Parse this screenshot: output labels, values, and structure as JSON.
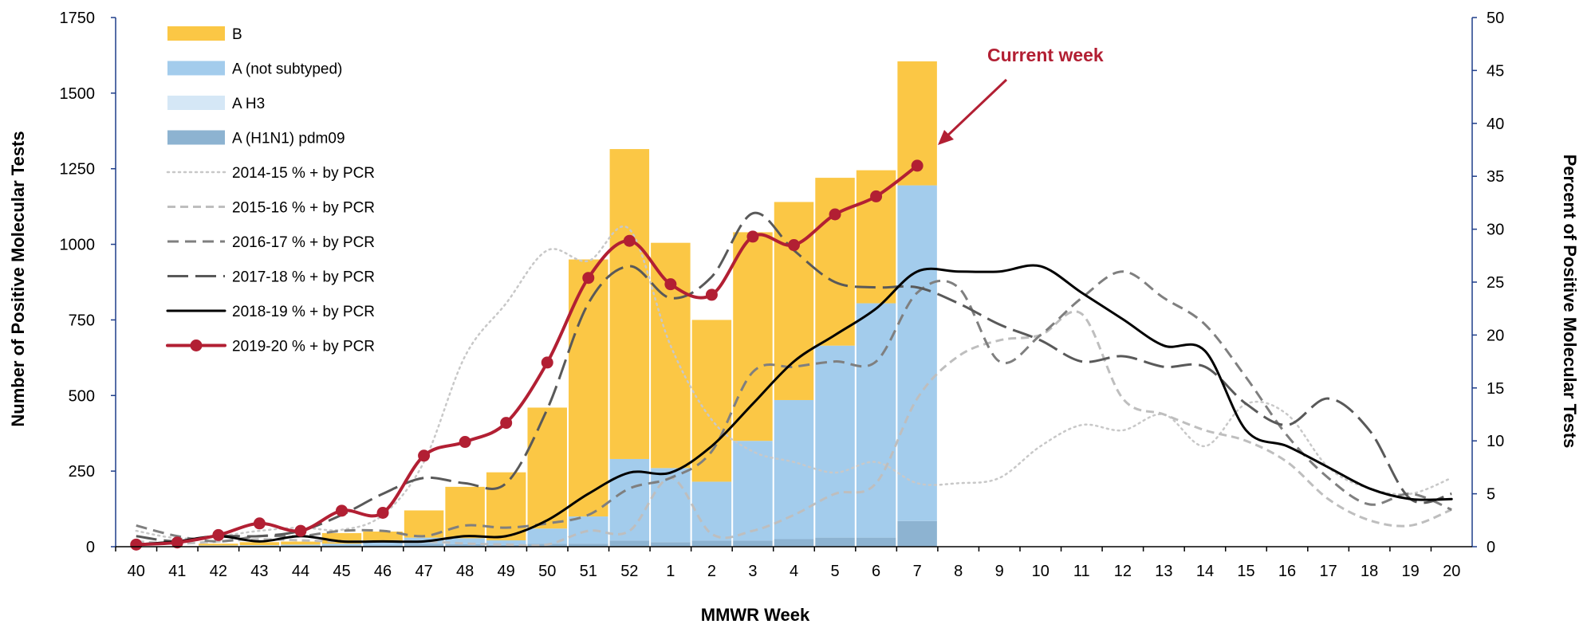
{
  "chart_data": {
    "type": "bar",
    "xlabel": "MMWR Week",
    "ylabel": "Number of Positive Molecular Tests",
    "y2label": "Percent of Positive Molecular Tests",
    "ylim": [
      0,
      1750
    ],
    "y2lim": [
      0,
      50
    ],
    "yticks": [
      0,
      250,
      500,
      750,
      1000,
      1250,
      1500,
      1750
    ],
    "y2ticks": [
      0,
      5,
      10,
      15,
      20,
      25,
      30,
      35,
      40,
      45,
      50
    ],
    "categories": [
      "40",
      "41",
      "42",
      "43",
      "44",
      "45",
      "46",
      "47",
      "48",
      "49",
      "50",
      "51",
      "52",
      "1",
      "2",
      "3",
      "4",
      "5",
      "6",
      "7",
      "8",
      "9",
      "10",
      "11",
      "12",
      "13",
      "14",
      "15",
      "16",
      "17",
      "18",
      "19",
      "20"
    ],
    "bar_series": [
      {
        "name": "A (H1N1) pdm09",
        "color": "#8db3d1",
        "values": [
          0,
          0,
          2,
          3,
          5,
          5,
          5,
          10,
          8,
          6,
          10,
          10,
          20,
          15,
          20,
          20,
          25,
          30,
          30,
          85
        ]
      },
      {
        "name": "A H3",
        "color": "#d5e7f6",
        "values": [
          0,
          0,
          0,
          0,
          0,
          0,
          0,
          0,
          0,
          0,
          0,
          0,
          0,
          0,
          0,
          0,
          0,
          0,
          0,
          0
        ]
      },
      {
        "name": "A (not subtyped)",
        "color": "#a3ccec",
        "values": [
          0,
          0,
          2,
          2,
          2,
          5,
          10,
          20,
          20,
          15,
          50,
          90,
          270,
          245,
          195,
          330,
          460,
          635,
          775,
          1110
        ]
      },
      {
        "name": "B",
        "color": "#fbc745",
        "values": [
          0,
          0,
          6,
          10,
          10,
          35,
          35,
          90,
          170,
          225,
          400,
          850,
          1025,
          745,
          535,
          690,
          655,
          555,
          440,
          410
        ]
      }
    ],
    "line_series": [
      {
        "name": "2014-15 % + by PCR",
        "style": "dotted",
        "color": "#c8c8c8",
        "values": [
          1.5,
          0.8,
          1.0,
          1.5,
          1.8,
          1.6,
          3.0,
          8.0,
          18.0,
          23.0,
          28.0,
          27.0,
          30.0,
          19.0,
          12.0,
          9.0,
          8.0,
          7.0,
          8.0,
          6.0,
          6.0,
          6.5,
          9.5,
          11.5,
          11.0,
          12.5,
          9.5,
          13.5,
          12.5,
          7.5,
          5.5,
          5.0,
          6.5
        ]
      },
      {
        "name": "2015-16 % + by PCR",
        "style": "dashed-short",
        "color": "#bebebe",
        "values": [
          0.5,
          0.3,
          0.5,
          0.7,
          0.6,
          0.5,
          0.5,
          0.5,
          0.3,
          0.2,
          0.2,
          1.5,
          1.5,
          6.5,
          1.2,
          1.5,
          3.0,
          5.0,
          6.0,
          14.0,
          18.0,
          19.5,
          20.0,
          22.0,
          14.0,
          12.5,
          11.0,
          10.0,
          8.0,
          4.5,
          2.5,
          2.0,
          3.5
        ]
      },
      {
        "name": "2016-17 % + by PCR",
        "style": "dashed",
        "color": "#7f7f7f",
        "values": [
          2.0,
          1.0,
          0.5,
          1.0,
          1.0,
          1.5,
          1.5,
          1.0,
          2.0,
          1.8,
          2.2,
          3.0,
          5.5,
          6.5,
          9.0,
          16.5,
          17.0,
          17.5,
          17.5,
          24.0,
          24.5,
          17.5,
          20.0,
          23.5,
          26.0,
          23.5,
          21.0,
          16.0,
          10.5,
          6.5,
          4.0,
          5.0,
          3.5
        ]
      },
      {
        "name": "2017-18 % + by PCR",
        "style": "dashed-long",
        "color": "#595959",
        "values": [
          1.0,
          0.5,
          1.0,
          1.0,
          1.5,
          3.0,
          5.0,
          6.5,
          6.0,
          6.0,
          13.0,
          23.0,
          26.5,
          23.5,
          25.5,
          31.5,
          28.0,
          25.0,
          24.5,
          24.5,
          23.0,
          21.0,
          19.5,
          17.5,
          18.0,
          17.0,
          17.0,
          13.5,
          11.5,
          14.0,
          11.0,
          4.5,
          5.0
        ]
      },
      {
        "name": "2018-19 % + by PCR",
        "style": "solid",
        "color": "#000000",
        "values": [
          0.2,
          0.5,
          1.0,
          0.5,
          1.0,
          0.5,
          0.5,
          0.5,
          1.0,
          1.0,
          2.5,
          5.0,
          7.0,
          7.0,
          9.5,
          13.5,
          17.5,
          20.0,
          22.5,
          26.0,
          26.0,
          26.0,
          26.5,
          24.0,
          21.5,
          19.0,
          18.5,
          11.0,
          9.5,
          7.5,
          5.5,
          4.5,
          4.5
        ]
      },
      {
        "name": "2019-20 % + by PCR",
        "style": "marker",
        "color": "#b21f33",
        "values": [
          0.2,
          0.4,
          1.1,
          2.2,
          1.5,
          3.4,
          3.2,
          8.6,
          9.9,
          11.7,
          17.4,
          25.4,
          28.9,
          24.8,
          23.8,
          29.3,
          28.5,
          31.4,
          33.1,
          36.0
        ]
      }
    ],
    "annotation": "Current week",
    "annotation_color": "#b21f33"
  }
}
